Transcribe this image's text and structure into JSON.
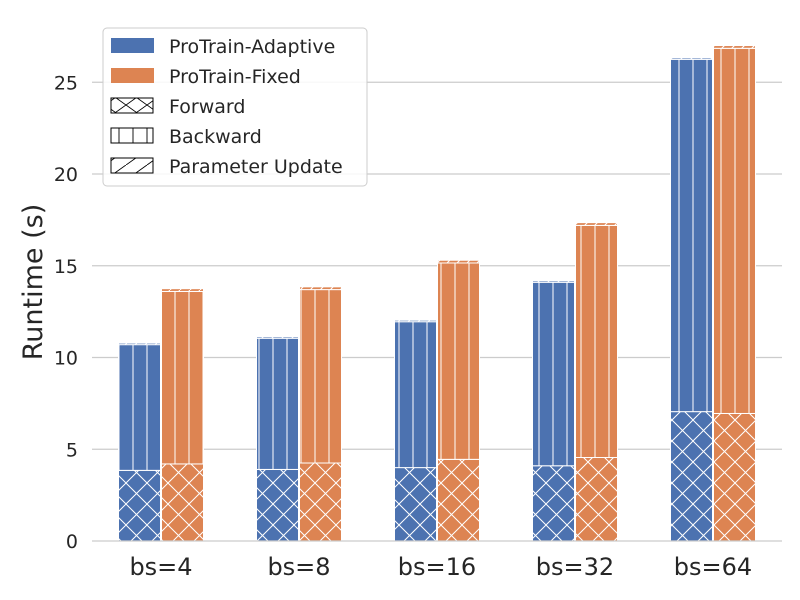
{
  "chart_data": {
    "type": "bar",
    "stacked": true,
    "grouped": true,
    "categories": [
      "bs=4",
      "bs=8",
      "bs=16",
      "bs=32",
      "bs=64"
    ],
    "ylabel": "Runtime (s)",
    "ylim": [
      0,
      27.5
    ],
    "yticks": [
      "0",
      "5",
      "10",
      "15",
      "20",
      "25"
    ],
    "grid": "horizontal",
    "legend_position": "top-left",
    "series": [
      {
        "name": "ProTrain-Adaptive",
        "color": "#4c72b0",
        "stack": [
          {
            "component": "Forward",
            "values": [
              3.85,
              3.9,
              4.0,
              4.1,
              7.05
            ]
          },
          {
            "component": "Backward",
            "values": [
              6.85,
              7.15,
              7.95,
              10.0,
              19.2
            ]
          },
          {
            "component": "Parameter Update",
            "values": [
              0.02,
              0.02,
              0.02,
              0.02,
              0.02
            ]
          }
        ]
      },
      {
        "name": "ProTrain-Fixed",
        "color": "#dd8452",
        "stack": [
          {
            "component": "Forward",
            "values": [
              4.2,
              4.25,
              4.45,
              4.55,
              6.95
            ]
          },
          {
            "component": "Backward",
            "values": [
              9.4,
              9.45,
              10.7,
              12.65,
              19.9
            ]
          },
          {
            "component": "Parameter Update",
            "values": [
              0.15,
              0.15,
              0.15,
              0.15,
              0.15
            ]
          }
        ]
      }
    ],
    "legend": [
      {
        "label": "ProTrain-Adaptive",
        "kind": "color",
        "color": "#4c72b0"
      },
      {
        "label": "ProTrain-Fixed",
        "kind": "color",
        "color": "#dd8452"
      },
      {
        "label": "Forward",
        "kind": "hatch",
        "hatch": "cross"
      },
      {
        "label": "Backward",
        "kind": "hatch",
        "hatch": "vertical"
      },
      {
        "label": "Parameter Update",
        "kind": "hatch",
        "hatch": "diagonal"
      }
    ]
  }
}
